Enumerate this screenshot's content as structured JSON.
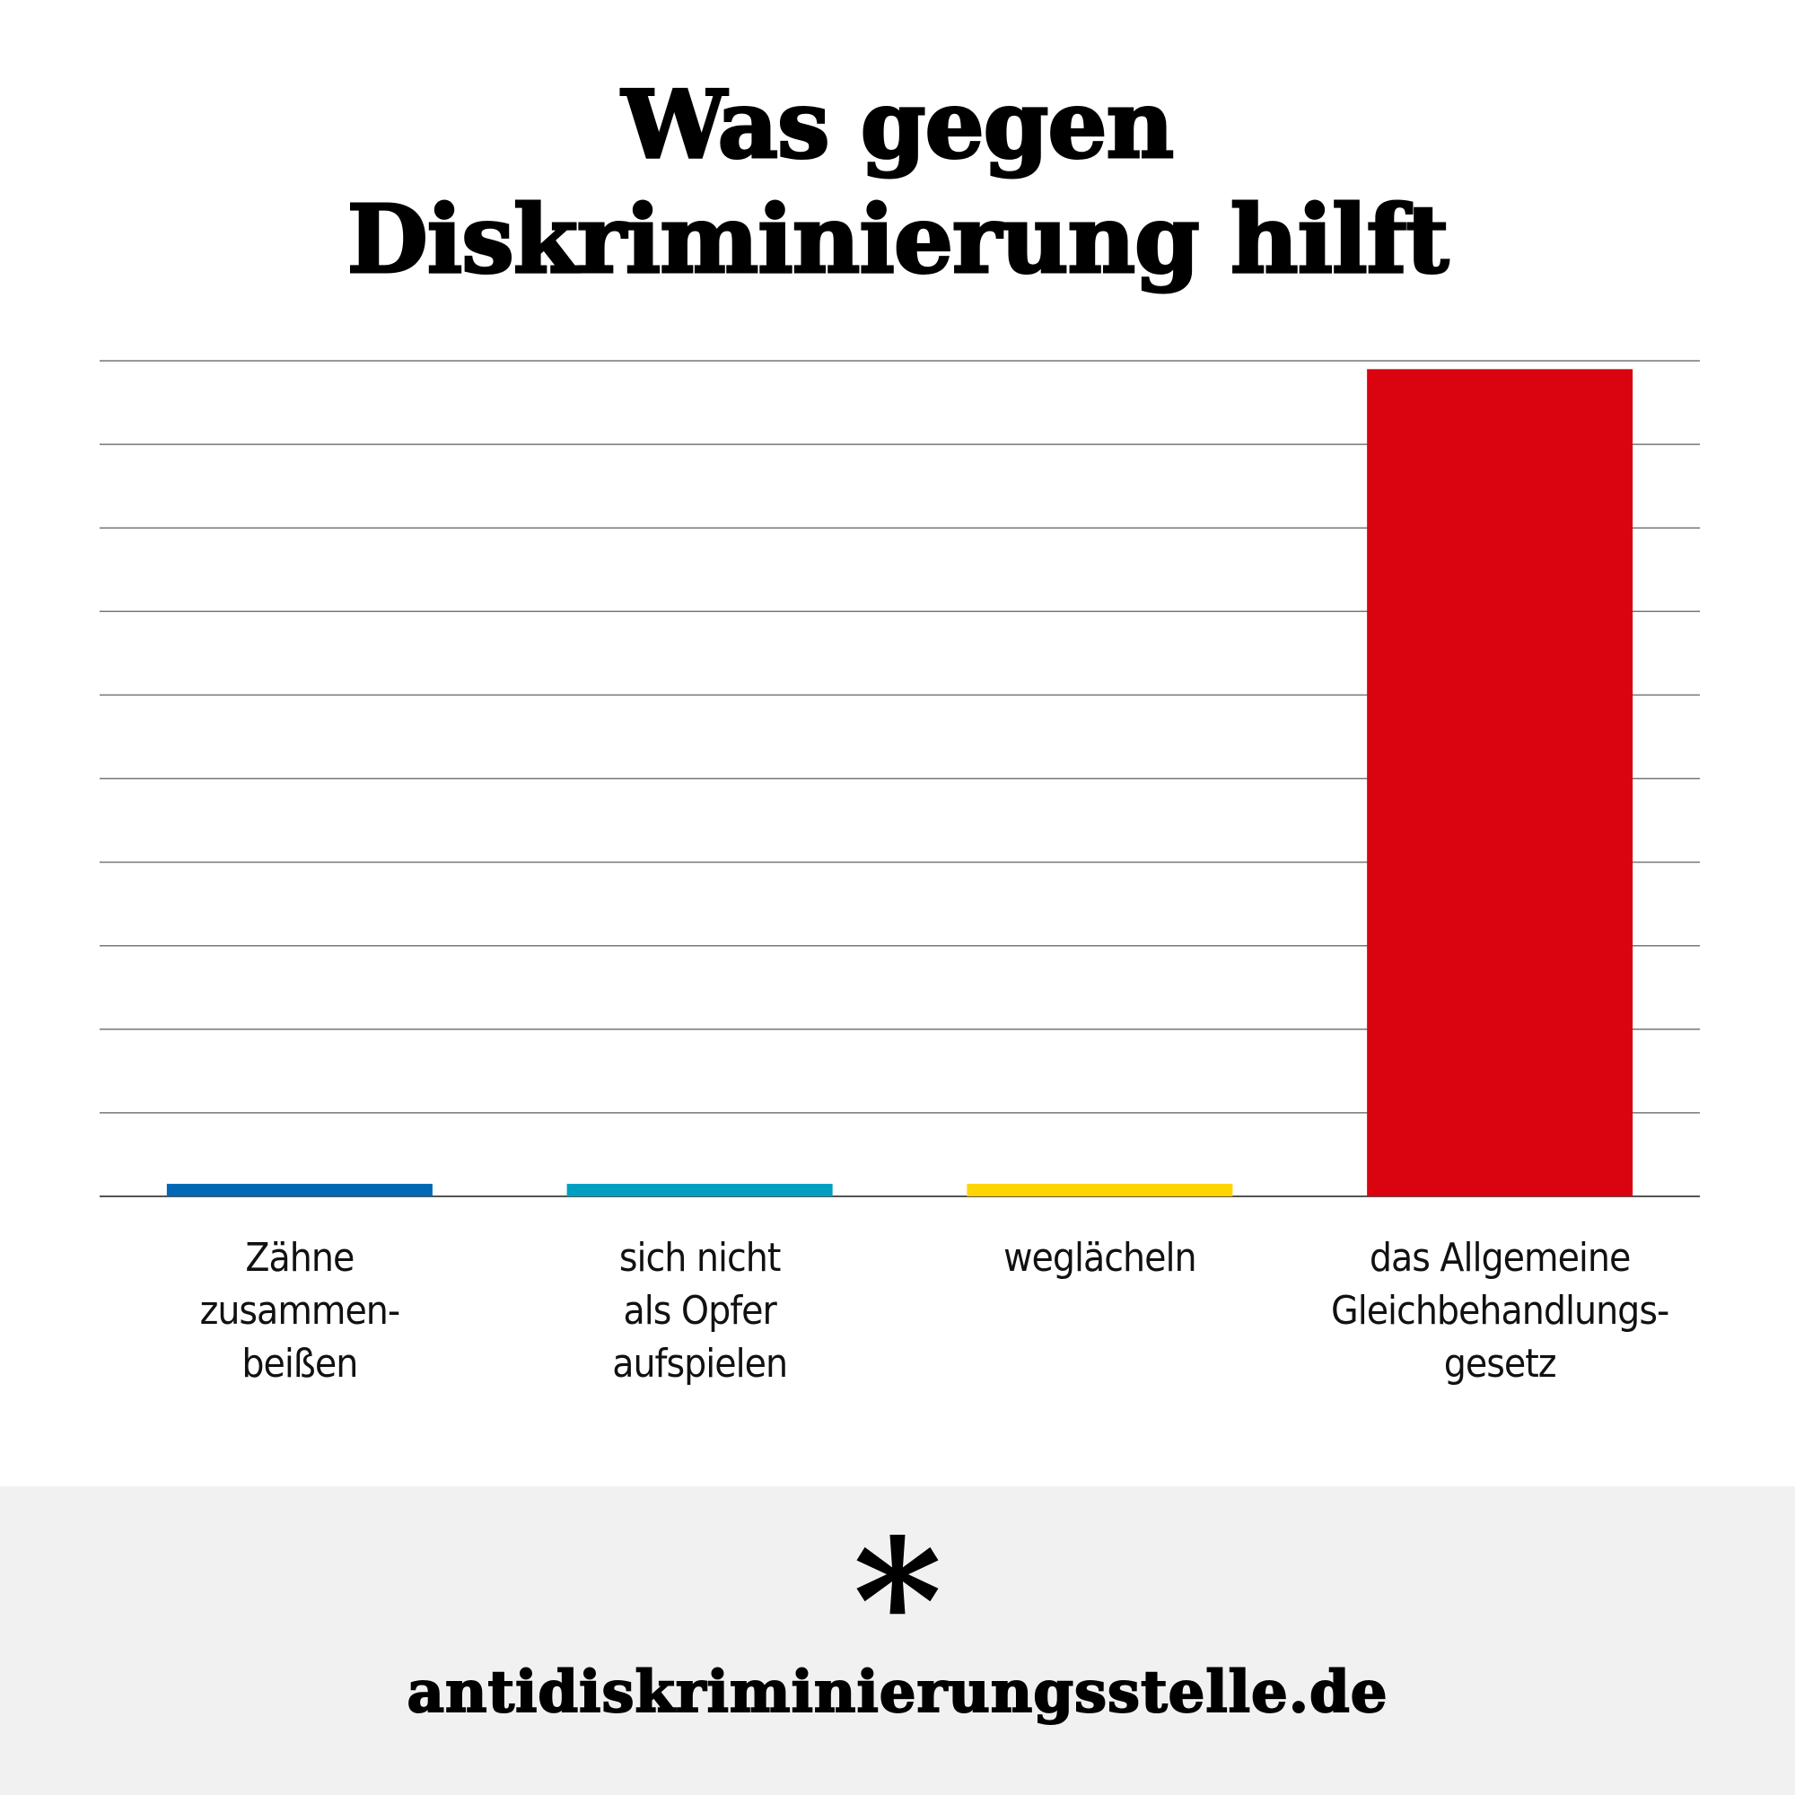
{
  "chart_data": {
    "type": "bar",
    "title": "Was gegen Diskriminierung hilft",
    "title_lines": [
      "Was gegen",
      "Diskriminierung hilft"
    ],
    "categories": [
      "Zähne zusammen-beißen",
      "sich nicht als Opfer aufspielen",
      "weglächeln",
      "das Allgemeine Gleichbehandlungs-gesetz"
    ],
    "category_lines": [
      [
        "Zähne",
        "zusammen-",
        "beißen"
      ],
      [
        "sich nicht",
        "als Opfer",
        "aufspielen"
      ],
      [
        "weglächeln"
      ],
      [
        "das Allgemeine",
        "Gleichbehandlungs-",
        "gesetz"
      ]
    ],
    "values": [
      0.15,
      0.15,
      0.15,
      9.9
    ],
    "colors": [
      "#0068b5",
      "#009fc1",
      "#ffd400",
      "#d9040f"
    ],
    "ylim": [
      0,
      10
    ],
    "grid": true,
    "gridlines": 10,
    "xlabel": "",
    "ylabel": ""
  },
  "footer": {
    "logo_icon": "asterisk-icon",
    "logo_glyph": "*",
    "url": "antidiskriminierungsstelle.de",
    "background": "#f1f1f1"
  }
}
